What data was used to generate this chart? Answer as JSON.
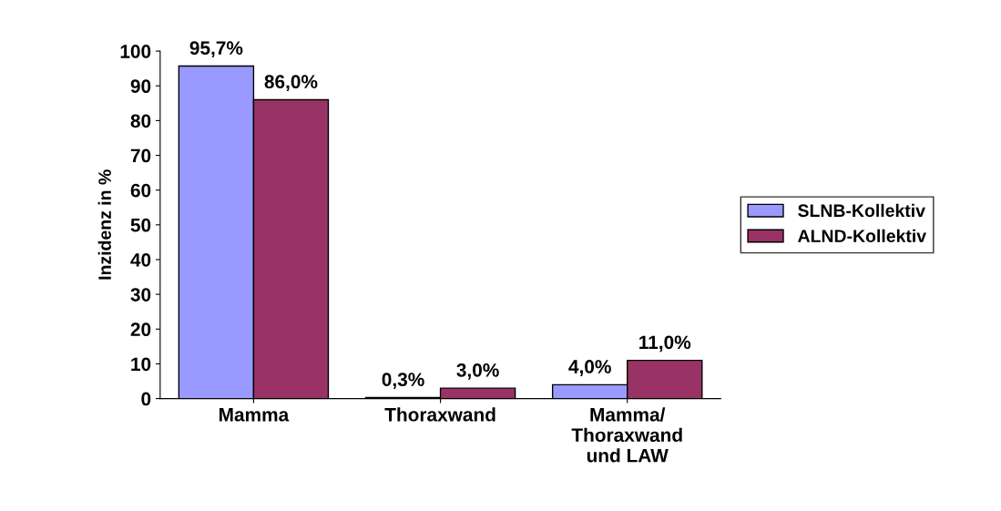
{
  "chart_data": {
    "type": "bar",
    "ylabel": "Inzidenz in %",
    "categories": [
      "Mamma",
      "Thoraxwand",
      "Mamma/\nThoraxwand\nund LAW"
    ],
    "series": [
      {
        "name": "SLNB-Kollektiv",
        "color": "#9999ff",
        "values": [
          95.7,
          0.3,
          4.0
        ],
        "value_labels": [
          "95,7%",
          "0,3%",
          "4,0%"
        ]
      },
      {
        "name": "ALND-Kollektiv",
        "color": "#993366",
        "values": [
          86.0,
          3.0,
          11.0
        ],
        "value_labels": [
          "86,0%",
          "3,0%",
          "11,0%"
        ]
      }
    ],
    "ylim": [
      0,
      100
    ],
    "yticks": [
      0,
      10,
      20,
      30,
      40,
      50,
      60,
      70,
      80,
      90,
      100
    ],
    "grid": false,
    "legend": "right"
  }
}
